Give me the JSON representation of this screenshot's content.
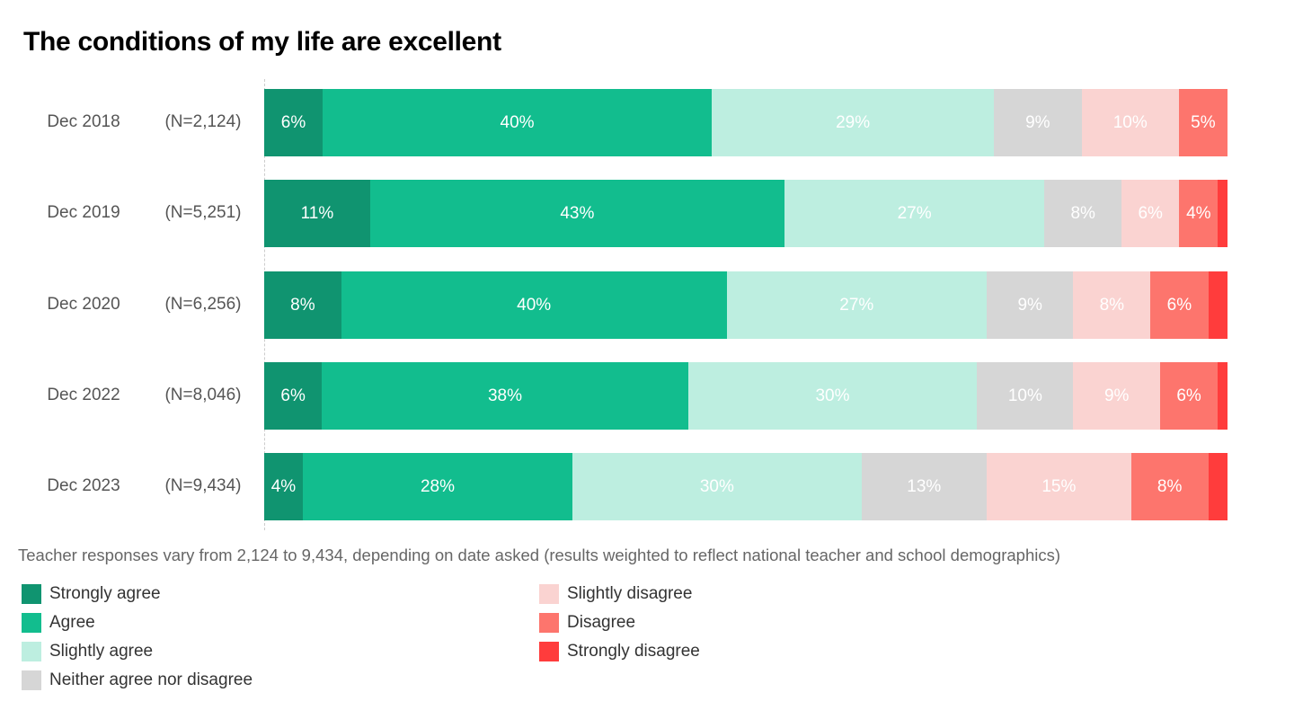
{
  "chart_data": {
    "type": "bar",
    "orientation": "horizontal",
    "stacked": true,
    "title": "The conditions of my life are excellent",
    "categories": [
      "Dec 2018",
      "Dec 2019",
      "Dec 2020",
      "Dec 2022",
      "Dec 2023"
    ],
    "sample_sizes": [
      "(N=2,124)",
      "(N=5,251)",
      "(N=6,256)",
      "(N=8,046)",
      "(N=9,434)"
    ],
    "series": [
      {
        "name": "Strongly agree",
        "color": "#109470",
        "values": [
          6,
          11,
          8,
          6,
          4
        ]
      },
      {
        "name": "Agree",
        "color": "#12bd8e",
        "values": [
          40,
          43,
          40,
          38,
          28
        ]
      },
      {
        "name": "Slightly agree",
        "color": "#bdeee0",
        "values": [
          29,
          27,
          27,
          30,
          30
        ]
      },
      {
        "name": "Neither agree nor disagree",
        "color": "#d6d6d6",
        "values": [
          9,
          8,
          9,
          10,
          13
        ]
      },
      {
        "name": "Slightly disagree",
        "color": "#fad3d1",
        "values": [
          10,
          6,
          8,
          9,
          15
        ]
      },
      {
        "name": "Disagree",
        "color": "#fd756d",
        "values": [
          5,
          4,
          6,
          6,
          8
        ]
      },
      {
        "name": "Strongly disagree",
        "color": "#ff3c3c",
        "values": [
          0,
          1,
          2,
          1,
          2
        ]
      }
    ],
    "labeled_series_count": 6,
    "xlim": [
      0,
      100
    ],
    "grid": false,
    "legend_position": "bottom",
    "footnote": "Teacher responses vary from 2,124 to 9,434, depending on date asked (results weighted to reflect national teacher and school demographics)"
  }
}
